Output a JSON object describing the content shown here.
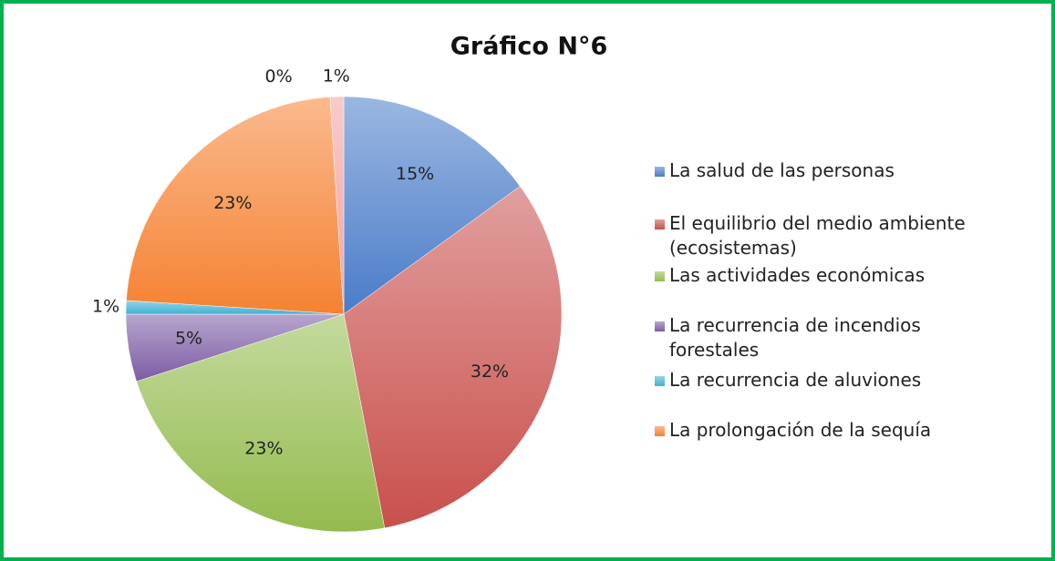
{
  "chart_data": {
    "type": "pie",
    "title": "Gráfico N°6",
    "categories": [
      "La salud de las personas",
      "El equilibrio del medio ambiente (ecosistemas)",
      "Las actividades económicas",
      "La recurrencia de incendios forestales",
      "La recurrencia de aluviones",
      "La prolongación de la sequía",
      null,
      null
    ],
    "values": [
      15,
      32,
      23,
      5,
      1,
      23,
      0,
      1
    ],
    "value_labels": [
      "15%",
      "32%",
      "23%",
      "5%",
      "1%",
      "23%",
      "0%",
      "1%"
    ],
    "colors": [
      "#4a7cc9",
      "#c8504c",
      "#94bb4e",
      "#7c5ca4",
      "#3fb2d4",
      "#f58232",
      "#9bbb59",
      "#f2a0a0"
    ],
    "legend": "right"
  }
}
